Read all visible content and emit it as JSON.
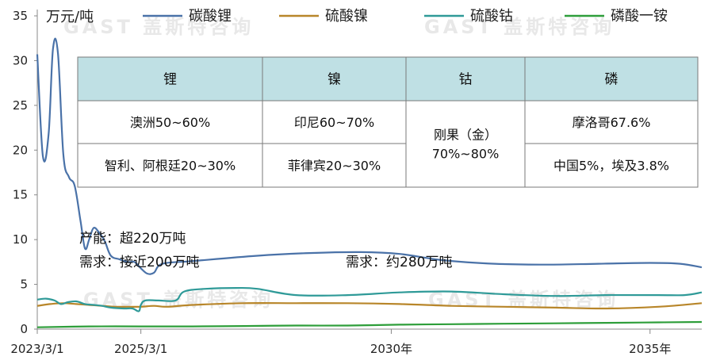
{
  "chart_data": {
    "type": "line",
    "unit_label": "万元/吨",
    "x_tick_labels": [
      "2023/3/1",
      "2025/3/1",
      "2030年",
      "2035年"
    ],
    "x_tick_dates": [
      "2023-03-01",
      "2025-03-01",
      "2030-01-01",
      "2035-01-01"
    ],
    "x_range": [
      "2023-03-01",
      "2036-01-01"
    ],
    "ylim": [
      0,
      35
    ],
    "yticks": [
      0,
      5,
      10,
      15,
      20,
      25,
      30,
      35
    ],
    "series": [
      {
        "name": "碳酸锂",
        "color": "#4a72a8",
        "points": [
          [
            "2023-03-01",
            30.7
          ],
          [
            "2023-04-10",
            19.3
          ],
          [
            "2023-05-20",
            21.8
          ],
          [
            "2023-06-20",
            31.3
          ],
          [
            "2023-07-25",
            30.8
          ],
          [
            "2023-09-01",
            19.5
          ],
          [
            "2023-10-10",
            17.0
          ],
          [
            "2023-11-20",
            16.0
          ],
          [
            "2024-01-01",
            12.0
          ],
          [
            "2024-02-01",
            9.0
          ],
          [
            "2024-03-01",
            10.0
          ],
          [
            "2024-04-01",
            11.3
          ],
          [
            "2024-05-10",
            10.8
          ],
          [
            "2024-06-20",
            9.8
          ],
          [
            "2024-08-01",
            8.2
          ],
          [
            "2024-10-01",
            7.8
          ],
          [
            "2024-12-01",
            7.5
          ],
          [
            "2025-01-15",
            7.5
          ],
          [
            "2025-03-01",
            6.8
          ],
          [
            "2025-04-15",
            6.2
          ],
          [
            "2025-06-01",
            6.3
          ],
          [
            "2025-08-01",
            7.3
          ],
          [
            "2026-03-01",
            7.6
          ],
          [
            "2027-06-01",
            8.2
          ],
          [
            "2028-06-01",
            8.5
          ],
          [
            "2029-06-01",
            8.6
          ],
          [
            "2030-03-01",
            8.4
          ],
          [
            "2031-01-01",
            7.7
          ],
          [
            "2032-01-01",
            7.3
          ],
          [
            "2033-01-01",
            7.2
          ],
          [
            "2034-01-01",
            7.3
          ],
          [
            "2035-01-01",
            7.4
          ],
          [
            "2035-08-01",
            7.3
          ],
          [
            "2036-01-01",
            6.9
          ]
        ]
      },
      {
        "name": "硫酸镍",
        "color": "#b8862a",
        "points": [
          [
            "2023-03-01",
            2.6
          ],
          [
            "2023-06-01",
            2.8
          ],
          [
            "2023-09-01",
            2.9
          ],
          [
            "2023-12-01",
            2.8
          ],
          [
            "2024-03-01",
            2.7
          ],
          [
            "2024-06-01",
            2.6
          ],
          [
            "2024-09-01",
            2.5
          ],
          [
            "2024-12-01",
            2.5
          ],
          [
            "2025-03-01",
            2.5
          ],
          [
            "2025-06-01",
            2.6
          ],
          [
            "2025-09-01",
            2.5
          ],
          [
            "2026-03-01",
            2.7
          ],
          [
            "2027-03-01",
            2.9
          ],
          [
            "2028-03-01",
            2.9
          ],
          [
            "2029-03-01",
            2.9
          ],
          [
            "2030-03-01",
            2.8
          ],
          [
            "2031-03-01",
            2.6
          ],
          [
            "2032-03-01",
            2.5
          ],
          [
            "2033-03-01",
            2.4
          ],
          [
            "2034-03-01",
            2.3
          ],
          [
            "2035-03-01",
            2.5
          ],
          [
            "2036-01-01",
            2.9
          ]
        ]
      },
      {
        "name": "硫酸钴",
        "color": "#2f9a98",
        "points": [
          [
            "2023-03-01",
            3.3
          ],
          [
            "2023-05-01",
            3.4
          ],
          [
            "2023-07-01",
            3.2
          ],
          [
            "2023-08-15",
            2.8
          ],
          [
            "2023-10-01",
            3.0
          ],
          [
            "2023-12-01",
            3.1
          ],
          [
            "2024-02-01",
            2.8
          ],
          [
            "2024-04-01",
            2.7
          ],
          [
            "2024-06-01",
            2.6
          ],
          [
            "2024-08-01",
            2.4
          ],
          [
            "2024-11-01",
            2.3
          ],
          [
            "2025-01-01",
            2.3
          ],
          [
            "2025-02-15",
            2.0
          ],
          [
            "2025-03-01",
            2.7
          ],
          [
            "2025-04-01",
            3.2
          ],
          [
            "2025-07-01",
            3.2
          ],
          [
            "2025-11-01",
            3.2
          ],
          [
            "2026-01-01",
            4.2
          ],
          [
            "2026-06-01",
            4.5
          ],
          [
            "2027-01-01",
            4.6
          ],
          [
            "2027-06-01",
            4.5
          ],
          [
            "2028-03-01",
            3.8
          ],
          [
            "2029-03-01",
            3.8
          ],
          [
            "2030-03-01",
            4.1
          ],
          [
            "2031-03-01",
            4.2
          ],
          [
            "2032-03-01",
            3.9
          ],
          [
            "2033-03-01",
            3.7
          ],
          [
            "2034-03-01",
            3.8
          ],
          [
            "2035-03-01",
            3.8
          ],
          [
            "2035-09-01",
            3.8
          ],
          [
            "2036-01-01",
            4.1
          ]
        ]
      },
      {
        "name": "磷酸一铵",
        "color": "#2e9e3a",
        "points": [
          [
            "2023-03-01",
            0.2
          ],
          [
            "2024-03-01",
            0.3
          ],
          [
            "2025-03-01",
            0.3
          ],
          [
            "2026-03-01",
            0.3
          ],
          [
            "2027-03-01",
            0.35
          ],
          [
            "2028-03-01",
            0.4
          ],
          [
            "2029-03-01",
            0.4
          ],
          [
            "2030-03-01",
            0.5
          ],
          [
            "2031-03-01",
            0.55
          ],
          [
            "2032-03-01",
            0.6
          ],
          [
            "2033-03-01",
            0.65
          ],
          [
            "2034-03-01",
            0.7
          ],
          [
            "2035-03-01",
            0.75
          ],
          [
            "2036-01-01",
            0.8
          ]
        ]
      }
    ],
    "annotations": [
      {
        "id": "capacity",
        "text": "产能：超220万吨"
      },
      {
        "id": "demand-now",
        "text": "需求：接近200万吨"
      },
      {
        "id": "demand-future",
        "text": "需求：约280万吨"
      }
    ],
    "watermark": "GAST 盖斯特咨询",
    "table": {
      "header_color": "#bfe0e4",
      "columns": [
        {
          "header": "锂",
          "rows": [
            "澳洲50~60%",
            "智利、阿根廷20~30%"
          ]
        },
        {
          "header": "镍",
          "rows": [
            "印尼60~70%",
            "菲律宾20~30%"
          ]
        },
        {
          "header": "钴",
          "merged": [
            "刚果（金）",
            "70%~80%"
          ]
        },
        {
          "header": "磷",
          "rows": [
            "摩洛哥67.6%",
            "中国5%，埃及3.8%"
          ]
        }
      ]
    }
  }
}
